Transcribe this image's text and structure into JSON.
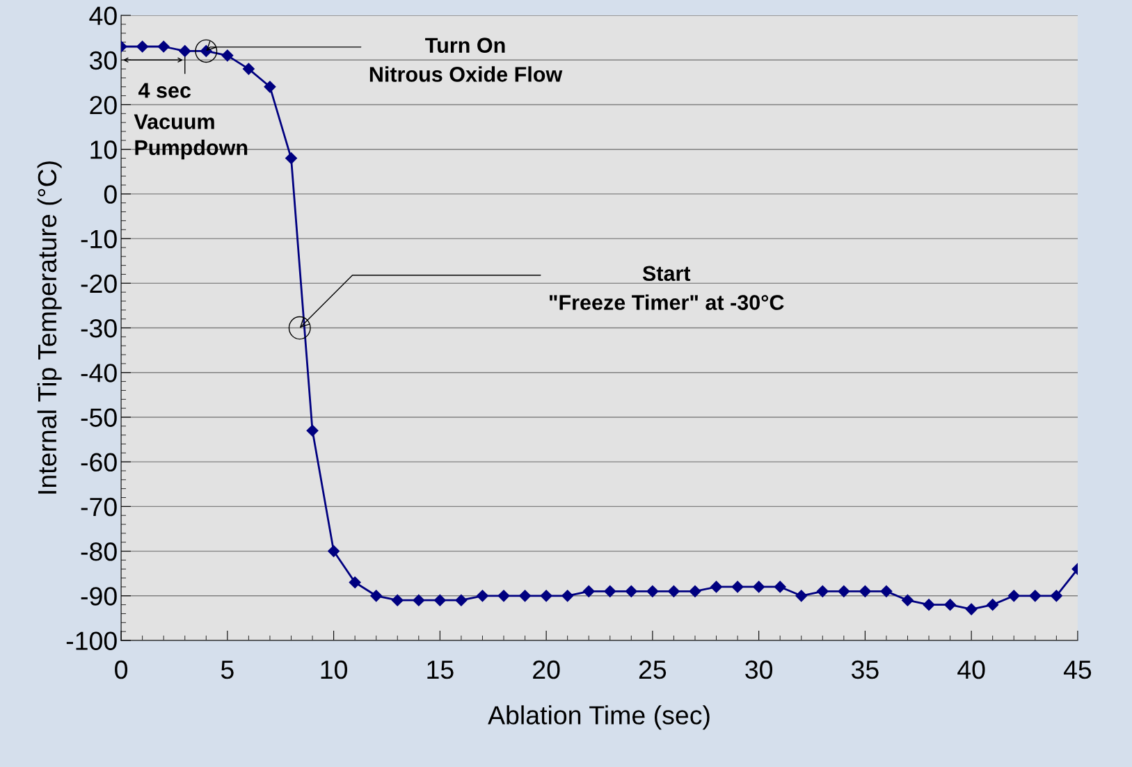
{
  "chart_data": {
    "type": "line",
    "xlabel": "Ablation Time (sec)",
    "ylabel": "Internal Tip Temperature (°C)",
    "x": [
      0,
      1,
      2,
      3,
      4,
      5,
      6,
      7,
      8,
      9,
      10,
      11,
      12,
      13,
      14,
      15,
      16,
      17,
      18,
      19,
      20,
      21,
      22,
      23,
      24,
      25,
      26,
      27,
      28,
      29,
      30,
      31,
      32,
      33,
      34,
      35,
      36,
      37,
      38,
      39,
      40,
      41,
      42,
      43,
      44,
      45
    ],
    "series": [
      {
        "color": "#000080",
        "values": [
          33,
          33,
          33,
          32,
          32,
          31,
          28,
          24,
          8,
          -53,
          -80,
          -87,
          -90,
          -91,
          -91,
          -91,
          -91,
          -90,
          -90,
          -90,
          -90,
          -90,
          -89,
          -89,
          -89,
          -89,
          -89,
          -89,
          -88,
          -88,
          -88,
          -88,
          -90,
          -89,
          -89,
          -89,
          -89,
          -91,
          -92,
          -92,
          -93,
          -92,
          -90,
          -90,
          -90,
          -84
        ]
      }
    ],
    "xlim": [
      0,
      45
    ],
    "xticks": [
      0,
      5,
      10,
      15,
      20,
      25,
      30,
      35,
      40,
      45
    ],
    "ylim": [
      -100,
      40
    ],
    "yticks": [
      -100,
      -90,
      -80,
      -70,
      -60,
      -50,
      -40,
      -30,
      -20,
      -10,
      0,
      10,
      20,
      30,
      40
    ],
    "grid": "y",
    "marker": "diamond",
    "line_style": "solid",
    "annotations": [
      {
        "text": "Turn On\nNitrous Oxide Flow",
        "x": 4,
        "y": 32
      },
      {
        "text": "Start\n\"Freeze Timer\" at -30°C",
        "x": 8.4,
        "y": -30
      },
      "4 sec",
      "Vacuum\nPumpdown"
    ]
  }
}
